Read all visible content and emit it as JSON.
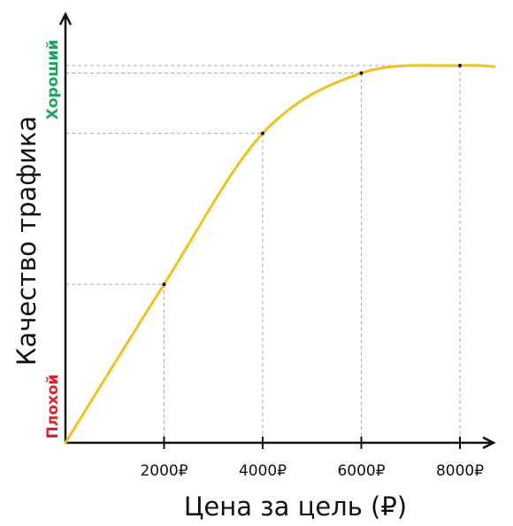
{
  "chart_data": {
    "type": "line",
    "xlabel": "Цена за цель (₽)",
    "ylabel": "Качество трафика",
    "y_top_label": "Хороший",
    "y_bottom_label": "Плохой",
    "x_ticks": [
      {
        "value": 2000,
        "label": "2000₽"
      },
      {
        "value": 4000,
        "label": "4000₽"
      },
      {
        "value": 6000,
        "label": "6000₽"
      },
      {
        "value": 8000,
        "label": "8000₽"
      }
    ],
    "xlim": [
      0,
      8700
    ],
    "ylim": [
      0,
      1
    ],
    "highlighted_points": [
      {
        "x": 2000,
        "y": 0.42
      },
      {
        "x": 4000,
        "y": 0.82
      },
      {
        "x": 6000,
        "y": 0.98
      },
      {
        "x": 8000,
        "y": 1.0
      }
    ],
    "series": [
      {
        "color": "#F2C21B",
        "points": [
          {
            "x": 0,
            "y": 0.0
          },
          {
            "x": 2000,
            "y": 0.42
          },
          {
            "x": 4000,
            "y": 0.82
          },
          {
            "x": 6000,
            "y": 0.98
          },
          {
            "x": 8000,
            "y": 1.0
          },
          {
            "x": 8700,
            "y": 0.997
          }
        ]
      }
    ],
    "colors": {
      "axis": "#111111",
      "guide": "#aaaaaa",
      "good": "#1FA35C",
      "bad": "#E0202E"
    },
    "grid": false
  }
}
